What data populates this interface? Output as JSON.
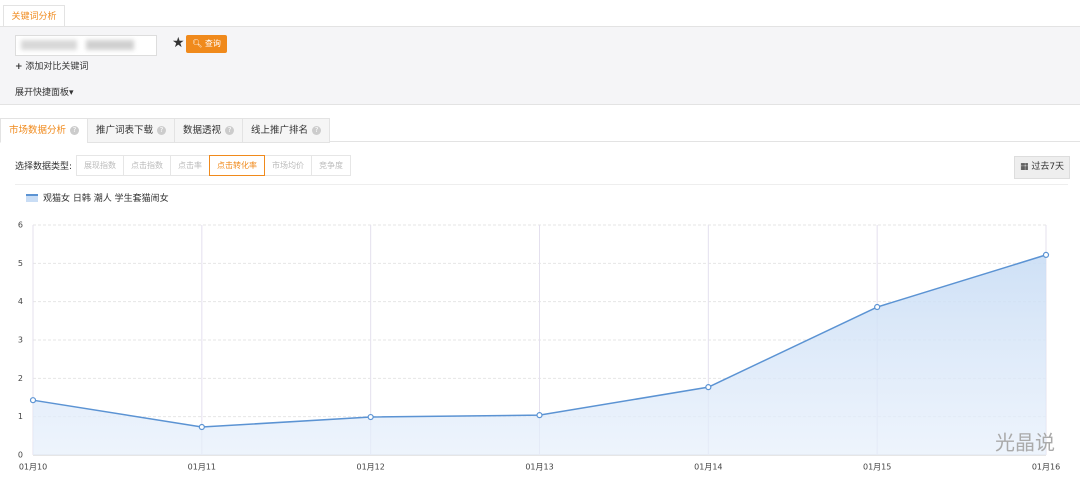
{
  "header": {
    "tab": "关键词分析",
    "search_button": "查询",
    "add_compare": "添加对比关键词",
    "expand_panel": "展开快捷面板"
  },
  "tabs": [
    "市场数据分析",
    "推广词表下载",
    "数据透视",
    "线上推广排名"
  ],
  "data_type_label": "选择数据类型:",
  "data_types": [
    "展现指数",
    "点击指数",
    "点击率",
    "点击转化率",
    "市场均价",
    "竞争度"
  ],
  "date_range": "过去7天",
  "watermark": "光晶说",
  "chart_data": {
    "type": "area",
    "categories": [
      "01月10",
      "01月11",
      "01月12",
      "01月13",
      "01月14",
      "01月15",
      "01月16"
    ],
    "series": [
      {
        "name": "观猫女 日韩 潮人 学生套猫闹女",
        "color": "#5b93d3",
        "values": [
          1.43,
          0.73,
          0.99,
          1.04,
          1.77,
          3.86,
          5.22
        ]
      }
    ],
    "ylim": [
      0,
      6
    ],
    "yticks": [
      0,
      1,
      2,
      3,
      4,
      5,
      6
    ],
    "grid": true
  }
}
